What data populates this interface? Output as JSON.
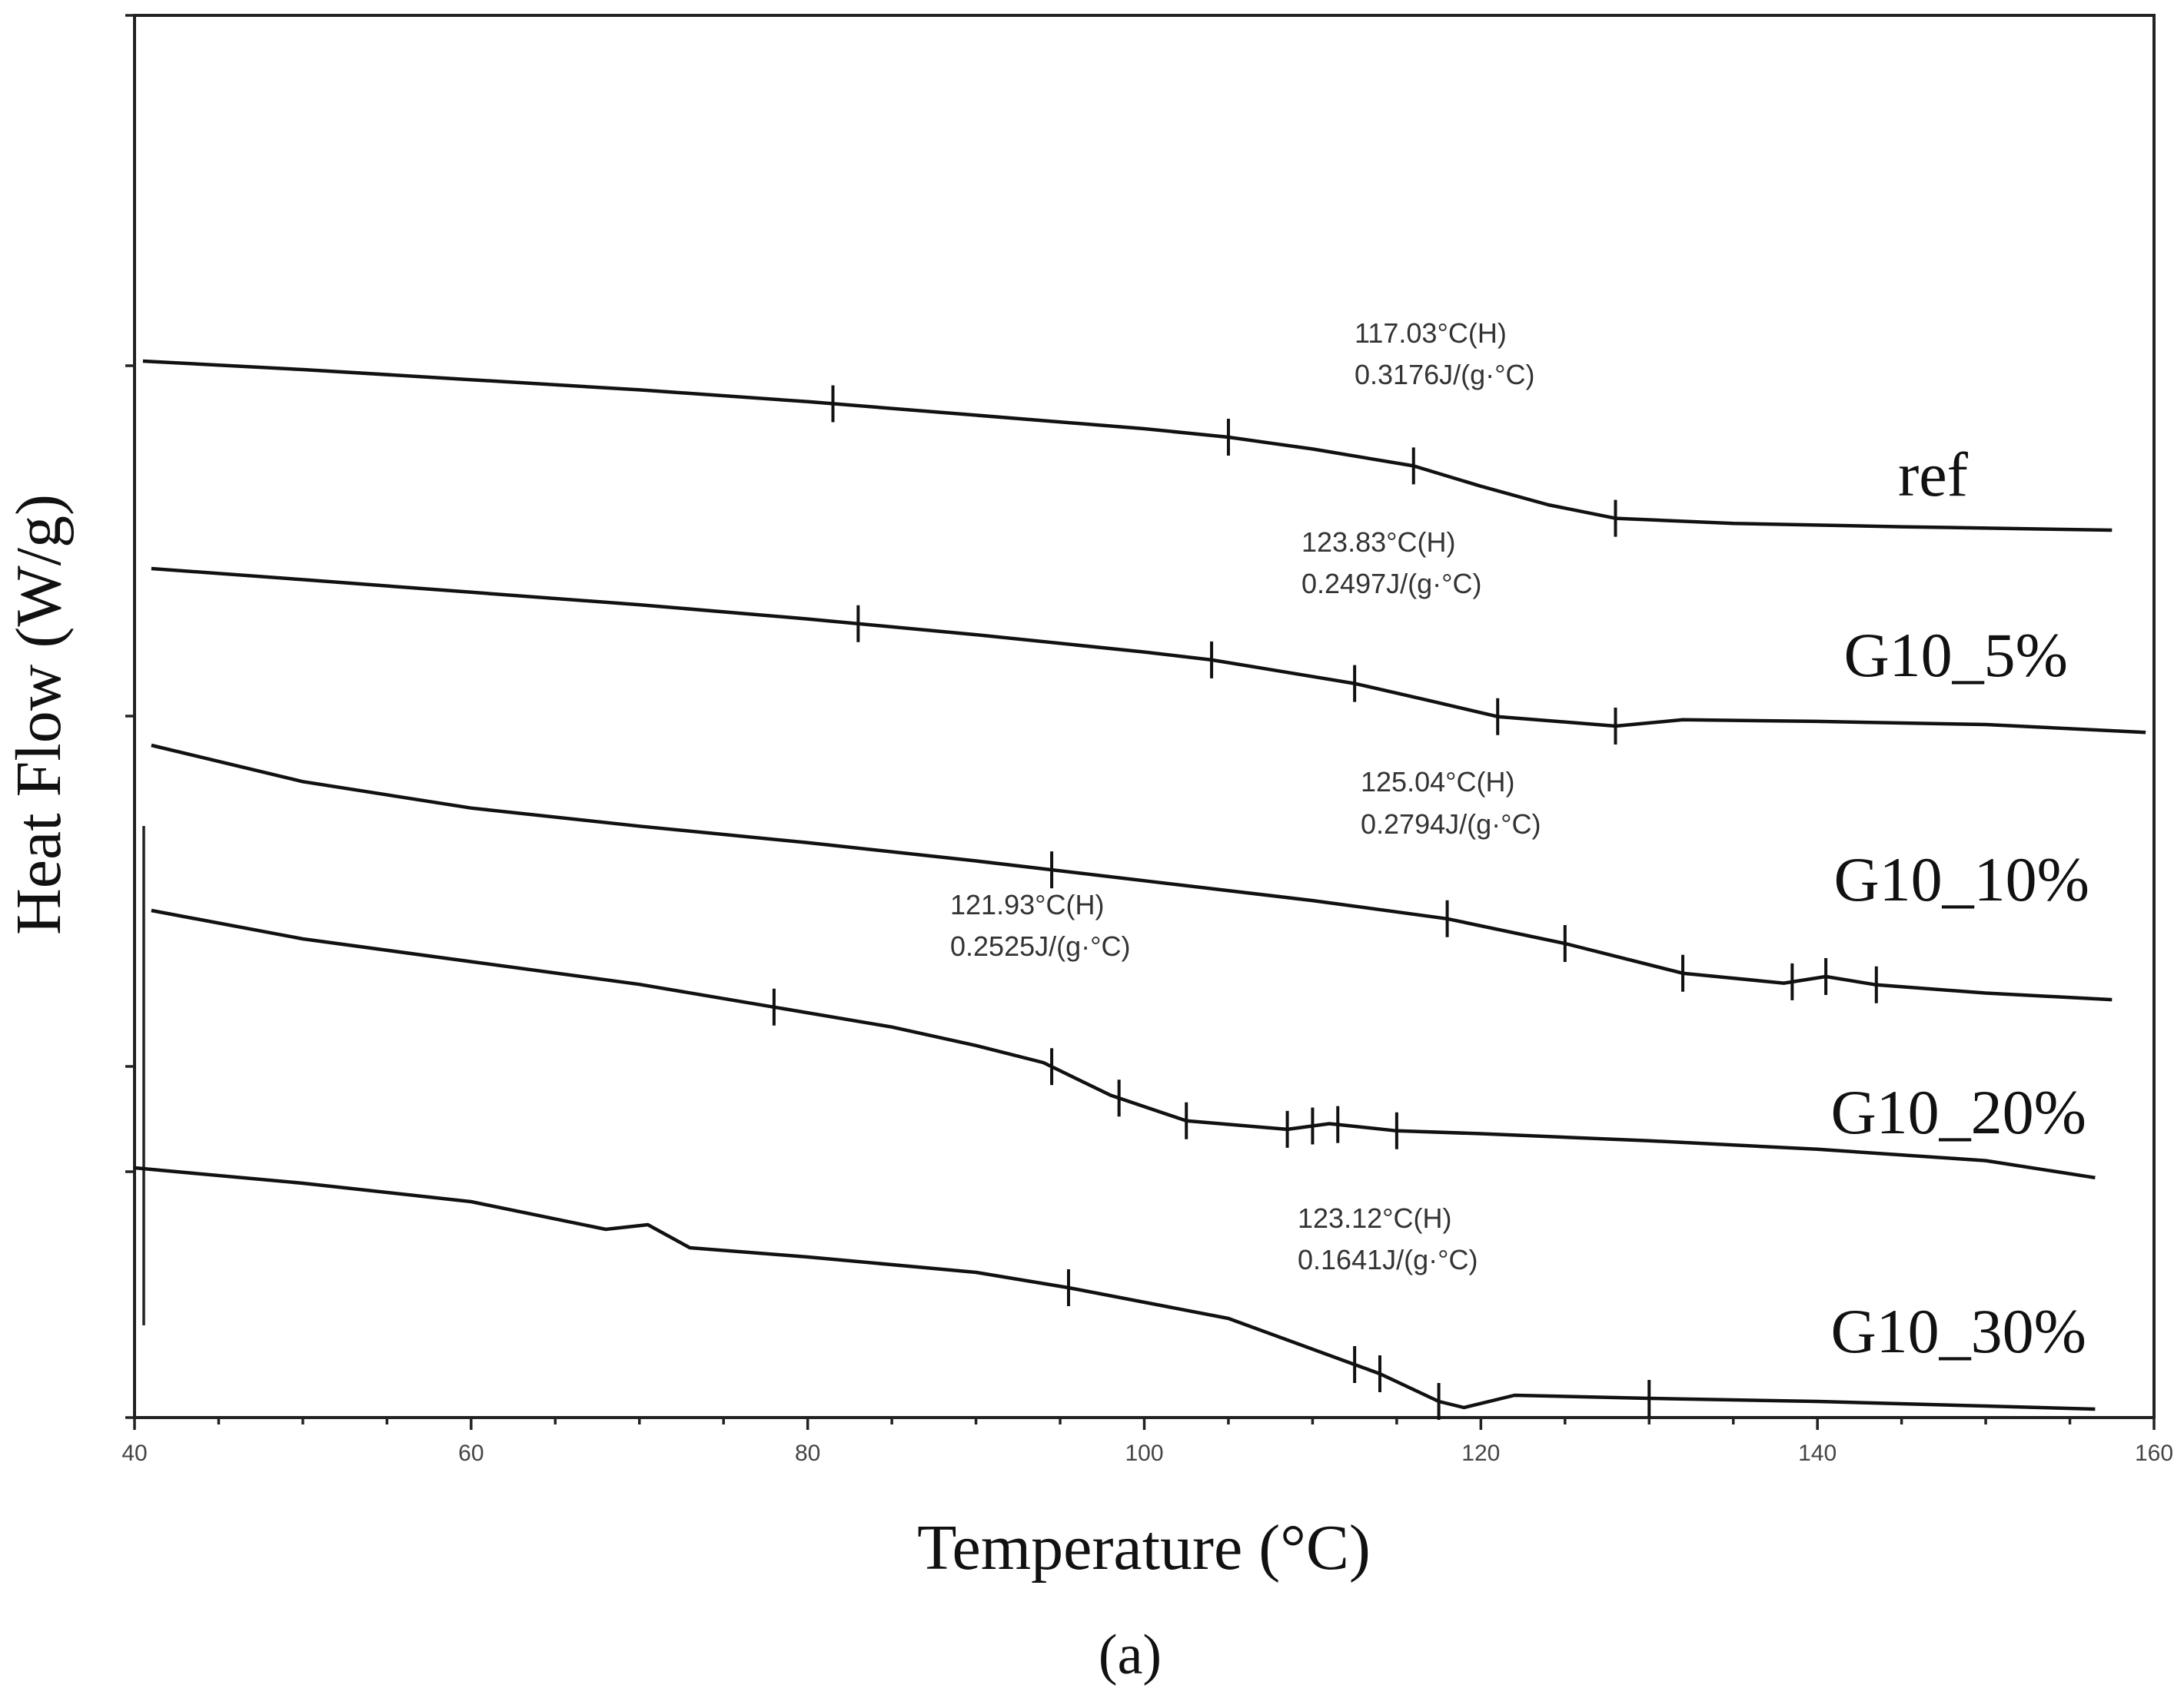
{
  "chart_data": {
    "type": "line",
    "xlabel": "Temperature (°C)",
    "ylabel": "Heat Flow (W/g)",
    "xlim": [
      40,
      160
    ],
    "xticks": [
      40,
      60,
      80,
      100,
      120,
      140,
      160
    ],
    "yticks_labeled": false,
    "caption": "(a)",
    "series": [
      {
        "name": "ref",
        "x": [
          40.5,
          50,
          60,
          70,
          80,
          90,
          100,
          105,
          110,
          116,
          120,
          124,
          128,
          135,
          145,
          157.5
        ],
        "y": [
          0,
          -0.05,
          -0.11,
          -0.17,
          -0.24,
          -0.32,
          -0.4,
          -0.45,
          -0.52,
          -0.62,
          -0.74,
          -0.85,
          -0.93,
          -0.96,
          -0.98,
          -1.0
        ],
        "markers": [
          81.5,
          105,
          116,
          128
        ],
        "annotation": [
          "117.03°C(H)",
          "0.3176J/(g·°C)"
        ]
      },
      {
        "name": "G10_5%",
        "x": [
          41,
          50,
          60,
          70,
          80,
          90,
          100,
          104,
          108,
          112.5,
          117,
          121,
          128,
          132,
          140,
          150,
          159.5
        ],
        "y": [
          0,
          -0.07,
          -0.15,
          -0.23,
          -0.32,
          -0.42,
          -0.53,
          -0.58,
          -0.65,
          -0.73,
          -0.84,
          -0.94,
          -1.0,
          -0.96,
          -0.97,
          -0.99,
          -1.04
        ],
        "markers": [
          83,
          104,
          112.5,
          121,
          128
        ],
        "annotation": [
          "123.83°C(H)",
          "0.2497J/(g·°C)"
        ]
      },
      {
        "name": "G10_10%",
        "x": [
          41,
          50,
          60,
          70,
          80,
          90,
          100,
          110,
          118,
          125,
          132,
          138,
          140.5,
          143.5,
          150,
          157.5
        ],
        "y": [
          0,
          -0.22,
          -0.38,
          -0.49,
          -0.59,
          -0.7,
          -0.82,
          -0.94,
          -1.05,
          -1.2,
          -1.38,
          -1.44,
          -1.4,
          -1.45,
          -1.5,
          -1.54
        ],
        "markers": [
          94.5,
          118,
          125,
          132,
          138.5,
          140.5,
          143.5
        ],
        "annotation": [
          "125.04°C(H)",
          "0.2794J/(g·°C)"
        ]
      },
      {
        "name": "G10_20%",
        "x": [
          41,
          50,
          60,
          70,
          78,
          85,
          90,
          94,
          98,
          102.5,
          108.5,
          111,
          115,
          120,
          130,
          140,
          150,
          156.5
        ],
        "y": [
          0,
          -0.2,
          -0.36,
          -0.52,
          -0.68,
          -0.82,
          -0.95,
          -1.07,
          -1.3,
          -1.48,
          -1.54,
          -1.5,
          -1.55,
          -1.57,
          -1.62,
          -1.68,
          -1.76,
          -1.88
        ],
        "markers": [
          78,
          94.5,
          98.5,
          102.5,
          108.5,
          110,
          111.5,
          115
        ],
        "annotation": [
          "121.93°C(H)",
          "0.2525J/(g·°C)"
        ]
      },
      {
        "name": "G10_30%",
        "x": [
          40,
          50,
          60,
          68,
          70.5,
          73,
          80,
          90,
          95.5,
          105,
          112.5,
          114,
          117.5,
          119,
          122,
          130,
          140,
          150,
          156.5
        ],
        "y": [
          0,
          -0.1,
          -0.22,
          -0.4,
          -0.37,
          -0.52,
          -0.58,
          -0.68,
          -0.78,
          -0.98,
          -1.28,
          -1.34,
          -1.52,
          -1.56,
          -1.48,
          -1.5,
          -1.52,
          -1.55,
          -1.57
        ],
        "markers": [
          95.5,
          112.5,
          114,
          117.5,
          130
        ],
        "annotation": [
          "123.12°C(H)",
          "0.1641J/(g·°C)"
        ]
      }
    ]
  }
}
